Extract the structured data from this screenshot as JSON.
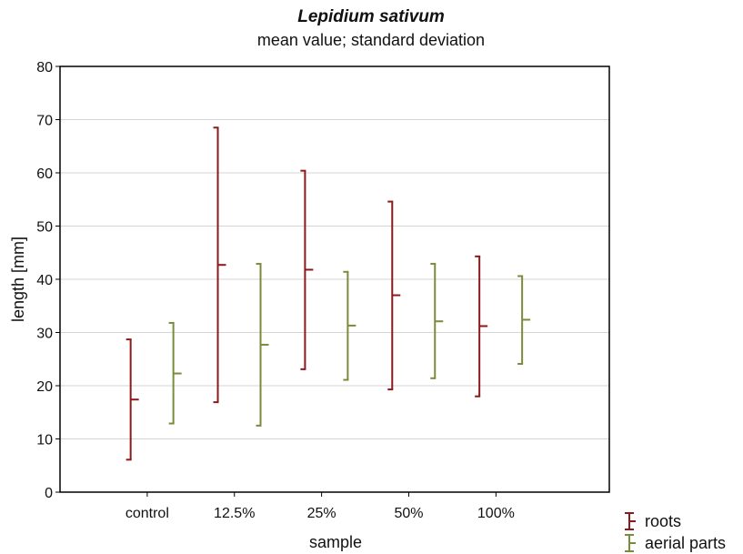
{
  "chart_data": {
    "type": "errorbar",
    "title": "Lepidium sativum",
    "subtitle": "mean value; standard deviation",
    "xlabel": "sample",
    "ylabel": "length [mm]",
    "ylim": [
      0,
      80
    ],
    "yticks": [
      0,
      10,
      20,
      30,
      40,
      50,
      60,
      70,
      80
    ],
    "categories": [
      "control",
      "12.5%",
      "25%",
      "50%",
      "100%"
    ],
    "grid": true,
    "legend_position": "bottom-right",
    "series": [
      {
        "name": "roots",
        "color": "#8b1a1a",
        "mean": [
          17.4,
          42.7,
          41.8,
          37.0,
          31.2
        ],
        "lower": [
          6.1,
          16.9,
          23.1,
          19.3,
          18.0
        ],
        "upper": [
          28.7,
          68.5,
          60.4,
          54.6,
          44.3
        ]
      },
      {
        "name": "aerial parts",
        "color": "#7a8c3c",
        "mean": [
          22.3,
          27.7,
          31.3,
          32.1,
          32.4
        ],
        "lower": [
          12.9,
          12.5,
          21.1,
          21.4,
          24.1
        ],
        "upper": [
          31.8,
          42.9,
          41.4,
          42.9,
          40.6
        ]
      }
    ]
  }
}
